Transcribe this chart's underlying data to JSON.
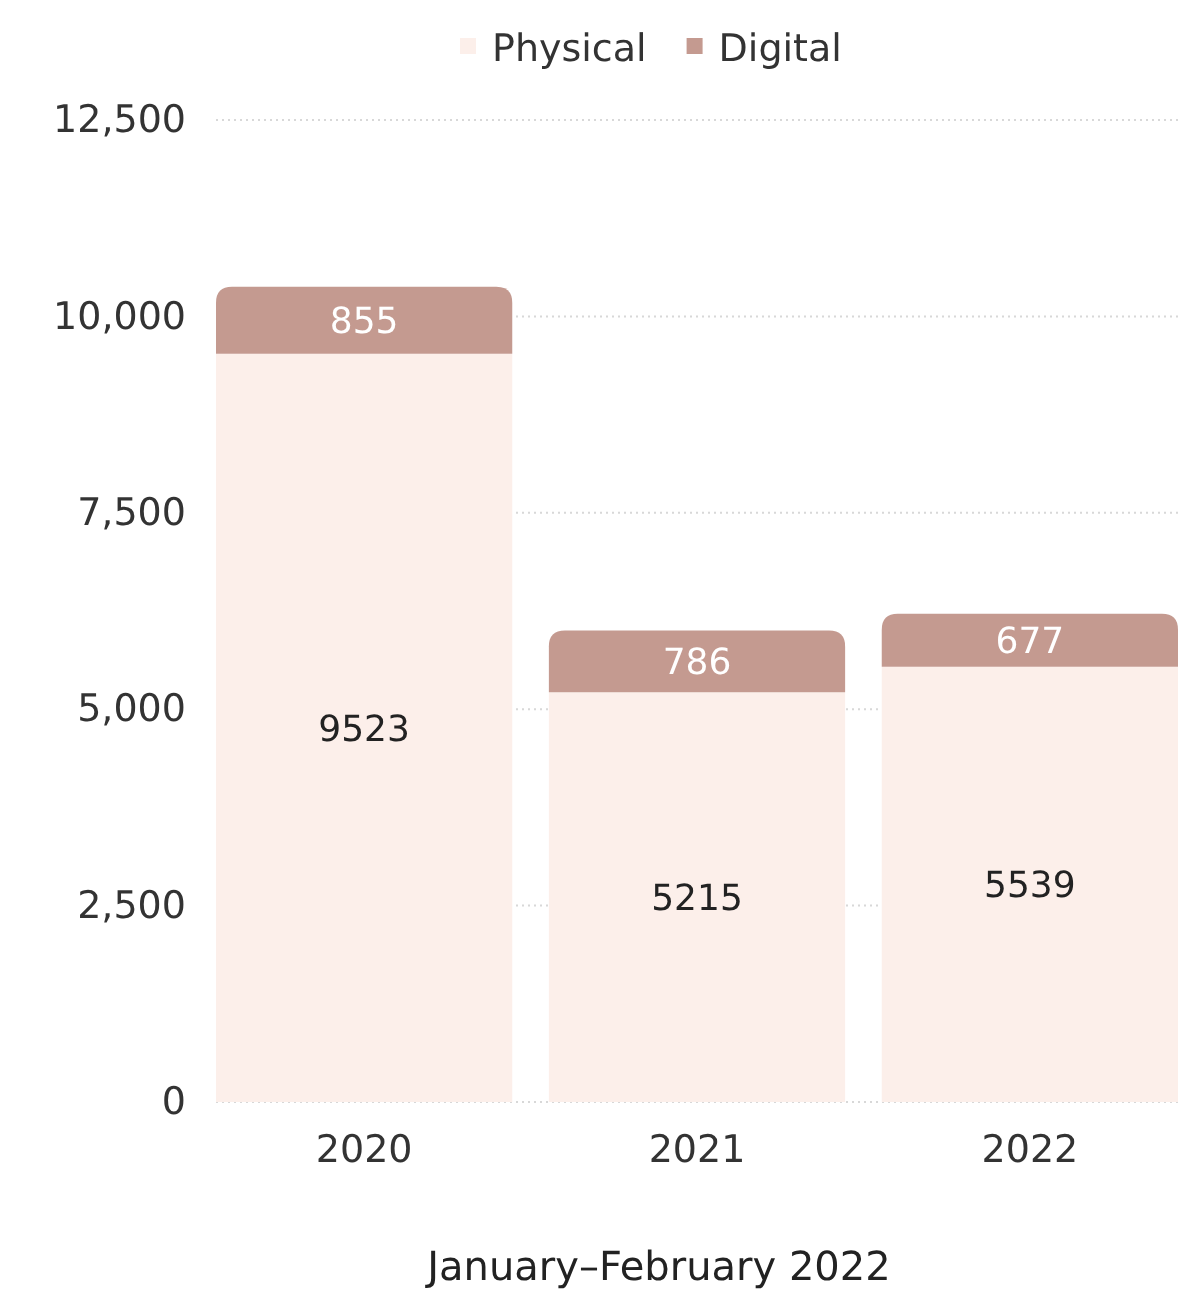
{
  "chart_data": {
    "type": "bar",
    "stacked": true,
    "xlabel": "January–February 2022",
    "categories": [
      "2020",
      "2021",
      "2022"
    ],
    "series": [
      {
        "name": "Physical",
        "color": "#fcefea",
        "values": [
          9523,
          5215,
          5539
        ]
      },
      {
        "name": "Digital",
        "color": "#c49a90",
        "values": [
          855,
          786,
          677
        ]
      }
    ],
    "ylim": [
      0,
      12500
    ],
    "yticks": [
      0,
      {
        "value": 2500,
        "label": "2,500"
      },
      {
        "value": 5000,
        "label": "5,000"
      },
      {
        "value": 7500,
        "label": "7,500"
      },
      {
        "value": 10000,
        "label": "10,000"
      },
      {
        "value": 12500,
        "label": "12,500"
      }
    ],
    "grid": "y",
    "legend": "top",
    "data_labels": true
  }
}
